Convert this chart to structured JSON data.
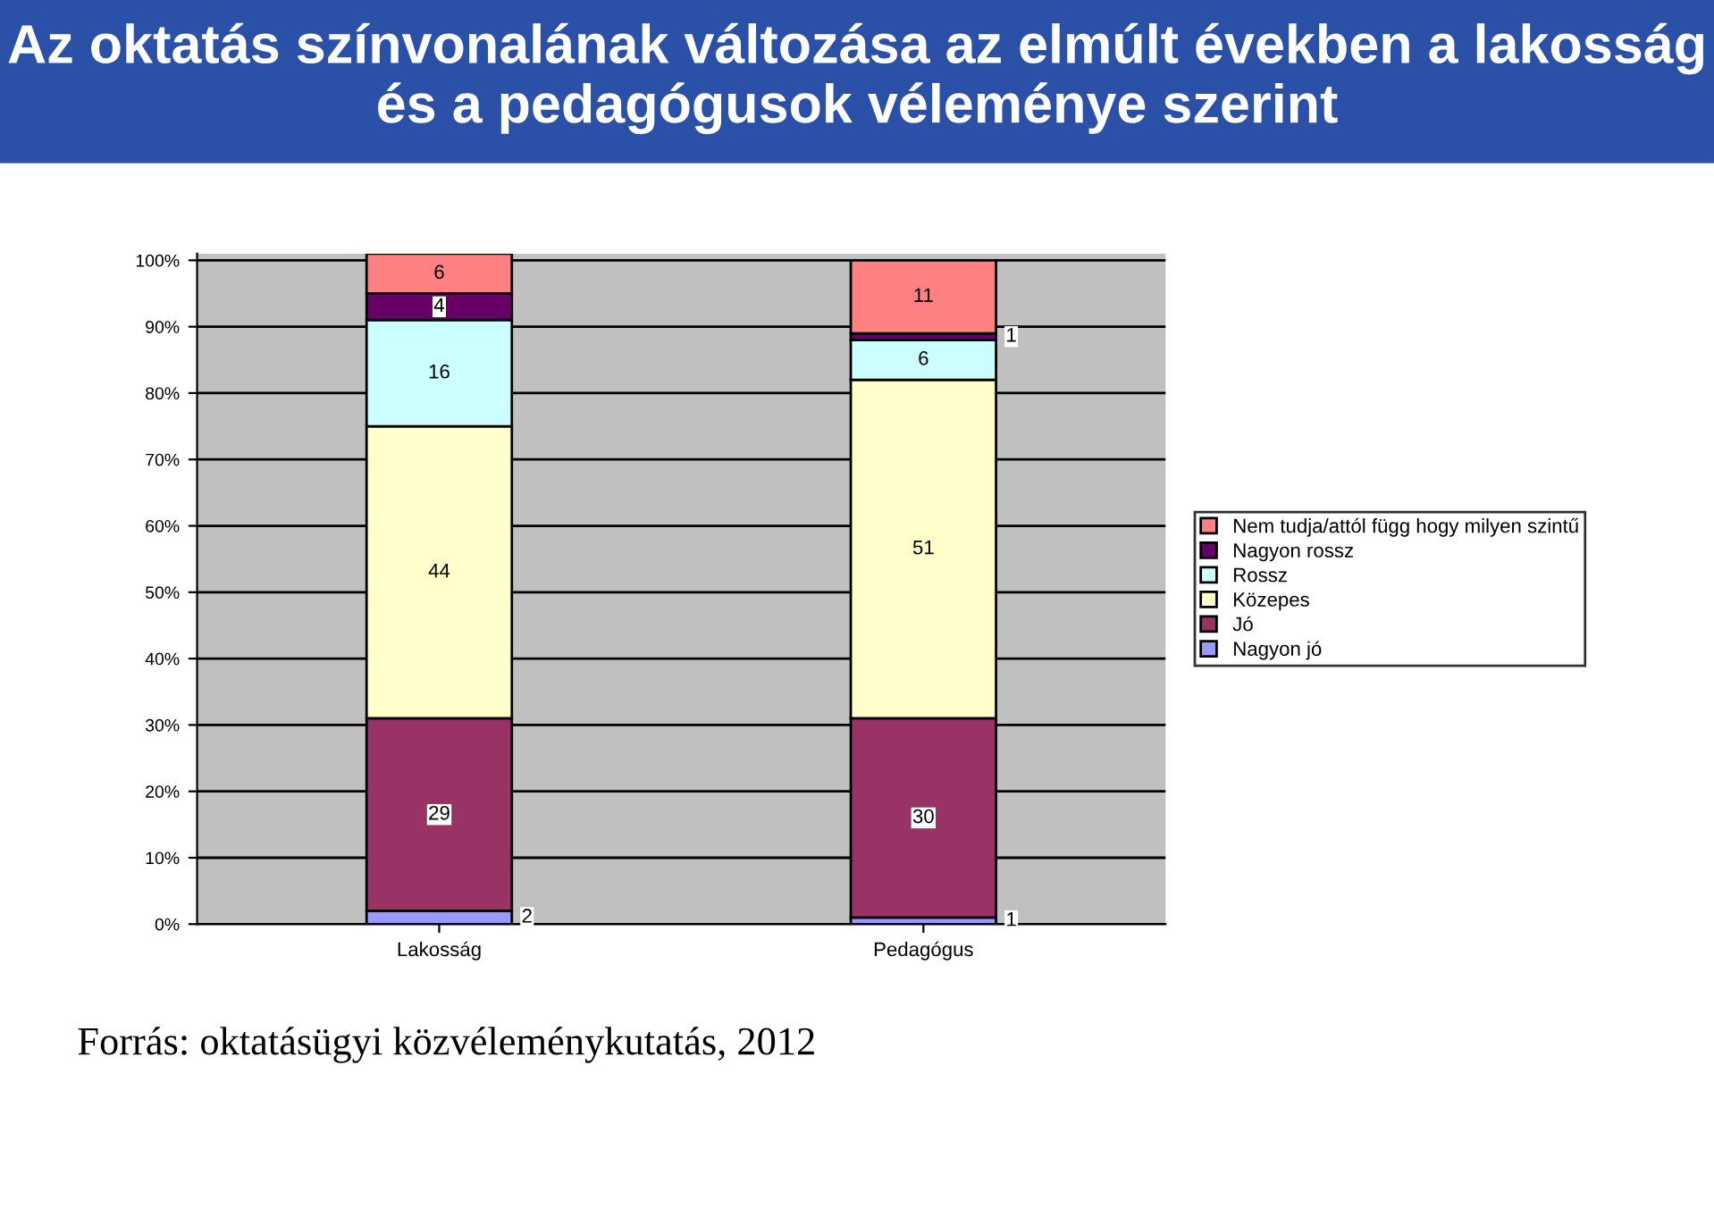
{
  "chart_data": {
    "type": "bar",
    "stacked": true,
    "title": "Az oktatás színvonalának változása az elmúlt években a lakosság és a pedagógusok véleménye szerint",
    "categories": [
      "Lakosság",
      "Pedagógus"
    ],
    "series": [
      {
        "name": "Nagyon jó",
        "color": "#9999ff",
        "values": [
          2,
          1
        ]
      },
      {
        "name": "Jó",
        "color": "#993366",
        "values": [
          29,
          30
        ]
      },
      {
        "name": "Közepes",
        "color": "#ffffcc",
        "values": [
          44,
          51
        ]
      },
      {
        "name": "Rossz",
        "color": "#ccffff",
        "values": [
          16,
          6
        ]
      },
      {
        "name": "Nagyon rossz",
        "color": "#660066",
        "values": [
          4,
          1
        ]
      },
      {
        "name": "Nem tudja/attól függ hogy milyen szintű",
        "color": "#ff8080",
        "values": [
          6,
          11
        ]
      }
    ],
    "ylim": [
      0,
      101
    ],
    "yticks": [
      {
        "value": 0,
        "label": "0%"
      },
      {
        "value": 10,
        "label": "10%"
      },
      {
        "value": 20,
        "label": "20%"
      },
      {
        "value": 30,
        "label": "30%"
      },
      {
        "value": 40,
        "label": "40%"
      },
      {
        "value": 50,
        "label": "50%"
      },
      {
        "value": 60,
        "label": "60%"
      },
      {
        "value": 70,
        "label": "70%"
      },
      {
        "value": 80,
        "label": "80%"
      },
      {
        "value": 90,
        "label": "90%"
      },
      {
        "value": 100,
        "label": "100%"
      }
    ],
    "grid": "y",
    "legend": "right",
    "data_labels": true,
    "annotations": [
      "Forrás: oktatásügyi közvéleménykutatás, 2012"
    ]
  }
}
